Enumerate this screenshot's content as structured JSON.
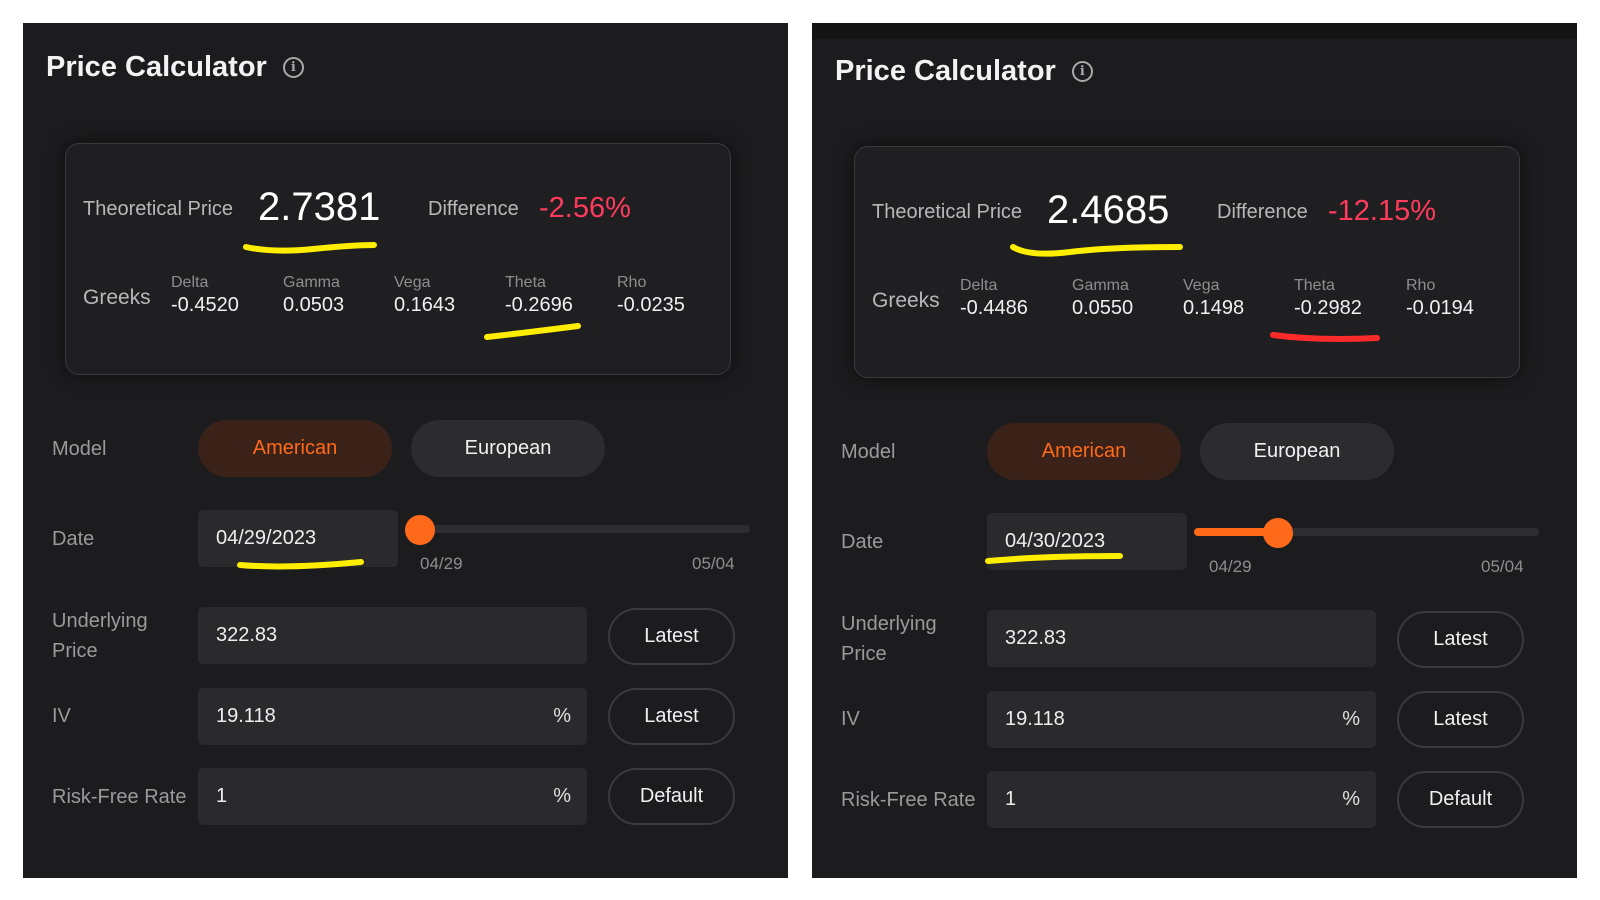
{
  "panels": [
    {
      "title": "Price Calculator",
      "info_icon": "i",
      "theoretical_price_label": "Theoretical Price",
      "theoretical_price": "2.7381",
      "difference_label": "Difference",
      "difference": "-2.56%",
      "greeks_label": "Greeks",
      "greeks": [
        {
          "name": "Delta",
          "value": "-0.4520"
        },
        {
          "name": "Gamma",
          "value": "0.0503"
        },
        {
          "name": "Vega",
          "value": "0.1643"
        },
        {
          "name": "Theta",
          "value": "-0.2696"
        },
        {
          "name": "Rho",
          "value": "-0.0235"
        }
      ],
      "model_label": "Model",
      "model_options": [
        "American",
        "European"
      ],
      "model_selected": "American",
      "date_label": "Date",
      "date_value": "04/29/2023",
      "slider_start": "04/29",
      "slider_end": "05/04",
      "slider_position": 0,
      "underlying_label_line1": "Underlying",
      "underlying_label_line2": "Price",
      "underlying_value": "322.83",
      "latest_label": "Latest",
      "iv_label": "IV",
      "iv_value": "19.118",
      "percent_sign": "%",
      "rfr_label": "Risk-Free Rate",
      "rfr_value": "1",
      "default_label": "Default",
      "annotation_color": "#ffee00",
      "theta_annotation_color": "#ffee00"
    },
    {
      "title": "Price Calculator",
      "info_icon": "i",
      "theoretical_price_label": "Theoretical Price",
      "theoretical_price": "2.4685",
      "difference_label": "Difference",
      "difference": "-12.15%",
      "greeks_label": "Greeks",
      "greeks": [
        {
          "name": "Delta",
          "value": "-0.4486"
        },
        {
          "name": "Gamma",
          "value": "0.0550"
        },
        {
          "name": "Vega",
          "value": "0.1498"
        },
        {
          "name": "Theta",
          "value": "-0.2982"
        },
        {
          "name": "Rho",
          "value": "-0.0194"
        }
      ],
      "model_label": "Model",
      "model_options": [
        "American",
        "European"
      ],
      "model_selected": "American",
      "date_label": "Date",
      "date_value": "04/30/2023",
      "slider_start": "04/29",
      "slider_end": "05/04",
      "slider_position": 0.2,
      "underlying_label_line1": "Underlying",
      "underlying_label_line2": "Price",
      "underlying_value": "322.83",
      "latest_label": "Latest",
      "iv_label": "IV",
      "iv_value": "19.118",
      "percent_sign": "%",
      "rfr_label": "Risk-Free Rate",
      "rfr_value": "1",
      "default_label": "Default",
      "annotation_color": "#ffee00",
      "theta_annotation_color": "#ff2a2a"
    }
  ],
  "colors": {
    "accent": "#ff6a1a",
    "negative": "#ff3b5c",
    "panel_bg": "#1c1c1e"
  }
}
